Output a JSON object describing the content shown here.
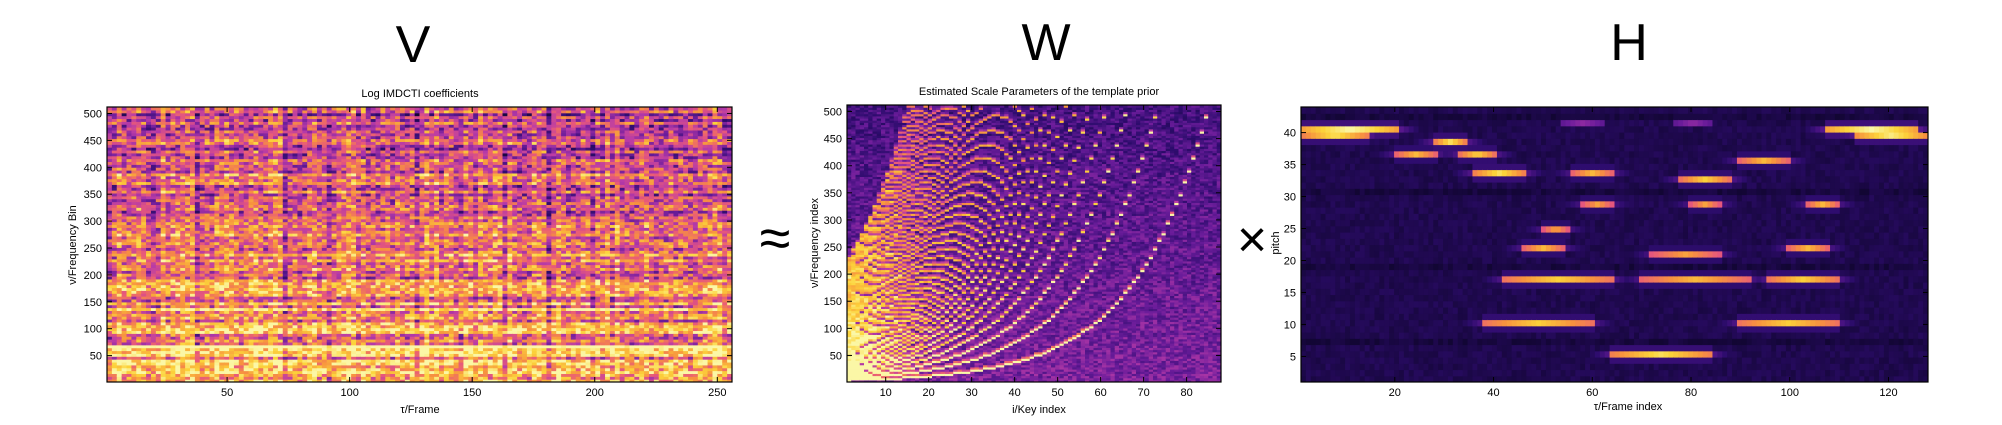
{
  "labels": {
    "V": "V",
    "W": "W",
    "H": "H",
    "approx": "≈",
    "times": "×"
  },
  "colormap": [
    "#0a0423",
    "#2e0c6e",
    "#6a1c9a",
    "#b63aa8",
    "#e8597a",
    "#f7923f",
    "#fcd33a",
    "#fbf7a6"
  ],
  "chart_data": [
    {
      "type": "heatmap",
      "title": "Log IMDCTI coefficients",
      "xlabel": "τ/Frame",
      "ylabel": "ν/Frequency Bin",
      "xlim": [
        1,
        256
      ],
      "ylim": [
        1,
        512
      ],
      "xticks": [
        50,
        100,
        150,
        200,
        250
      ],
      "yticks": [
        50,
        100,
        150,
        200,
        250,
        300,
        350,
        400,
        450,
        500
      ]
    },
    {
      "type": "heatmap",
      "title": "Estimated Scale Parameters of the template prior",
      "xlabel": "i/Key index",
      "ylabel": "ν/Frequency index",
      "xlim": [
        1,
        88
      ],
      "ylim": [
        1,
        512
      ],
      "xticks": [
        10,
        20,
        30,
        40,
        50,
        60,
        70,
        80
      ],
      "yticks": [
        50,
        100,
        150,
        200,
        250,
        300,
        350,
        400,
        450,
        500
      ]
    },
    {
      "type": "heatmap",
      "title": "",
      "xlabel": "τ/Frame index",
      "ylabel": "pitch",
      "xlim": [
        1,
        128
      ],
      "ylim": [
        1,
        44
      ],
      "xticks": [
        20,
        40,
        60,
        80,
        100,
        120
      ],
      "yticks": [
        5,
        10,
        15,
        20,
        25,
        30,
        35,
        40
      ],
      "activations": [
        {
          "pitch": 41,
          "start": 1,
          "end": 20,
          "level": 1.0
        },
        {
          "pitch": 40,
          "start": 1,
          "end": 14,
          "level": 0.9
        },
        {
          "pitch": 41,
          "start": 108,
          "end": 126,
          "level": 1.0
        },
        {
          "pitch": 40,
          "start": 114,
          "end": 128,
          "level": 0.95
        },
        {
          "pitch": 39,
          "start": 28,
          "end": 34,
          "level": 0.9
        },
        {
          "pitch": 37,
          "start": 20,
          "end": 28,
          "level": 0.8
        },
        {
          "pitch": 37,
          "start": 33,
          "end": 40,
          "level": 0.85
        },
        {
          "pitch": 36,
          "start": 90,
          "end": 100,
          "level": 0.8
        },
        {
          "pitch": 34,
          "start": 36,
          "end": 46,
          "level": 0.9
        },
        {
          "pitch": 34,
          "start": 56,
          "end": 64,
          "level": 0.8
        },
        {
          "pitch": 33,
          "start": 78,
          "end": 88,
          "level": 0.85
        },
        {
          "pitch": 29,
          "start": 58,
          "end": 64,
          "level": 0.75
        },
        {
          "pitch": 29,
          "start": 80,
          "end": 86,
          "level": 0.75
        },
        {
          "pitch": 29,
          "start": 104,
          "end": 110,
          "level": 0.8
        },
        {
          "pitch": 25,
          "start": 50,
          "end": 55,
          "level": 0.75
        },
        {
          "pitch": 22,
          "start": 46,
          "end": 54,
          "level": 0.8
        },
        {
          "pitch": 22,
          "start": 100,
          "end": 108,
          "level": 0.8
        },
        {
          "pitch": 21,
          "start": 72,
          "end": 86,
          "level": 0.75
        },
        {
          "pitch": 17,
          "start": 42,
          "end": 64,
          "level": 0.85
        },
        {
          "pitch": 17,
          "start": 70,
          "end": 92,
          "level": 0.8
        },
        {
          "pitch": 17,
          "start": 96,
          "end": 110,
          "level": 0.85
        },
        {
          "pitch": 10,
          "start": 38,
          "end": 60,
          "level": 0.85
        },
        {
          "pitch": 10,
          "start": 90,
          "end": 110,
          "level": 0.85
        },
        {
          "pitch": 5,
          "start": 64,
          "end": 84,
          "level": 0.9
        },
        {
          "pitch": 42,
          "start": 54,
          "end": 62,
          "level": 0.35
        },
        {
          "pitch": 42,
          "start": 77,
          "end": 84,
          "level": 0.35
        }
      ]
    }
  ]
}
